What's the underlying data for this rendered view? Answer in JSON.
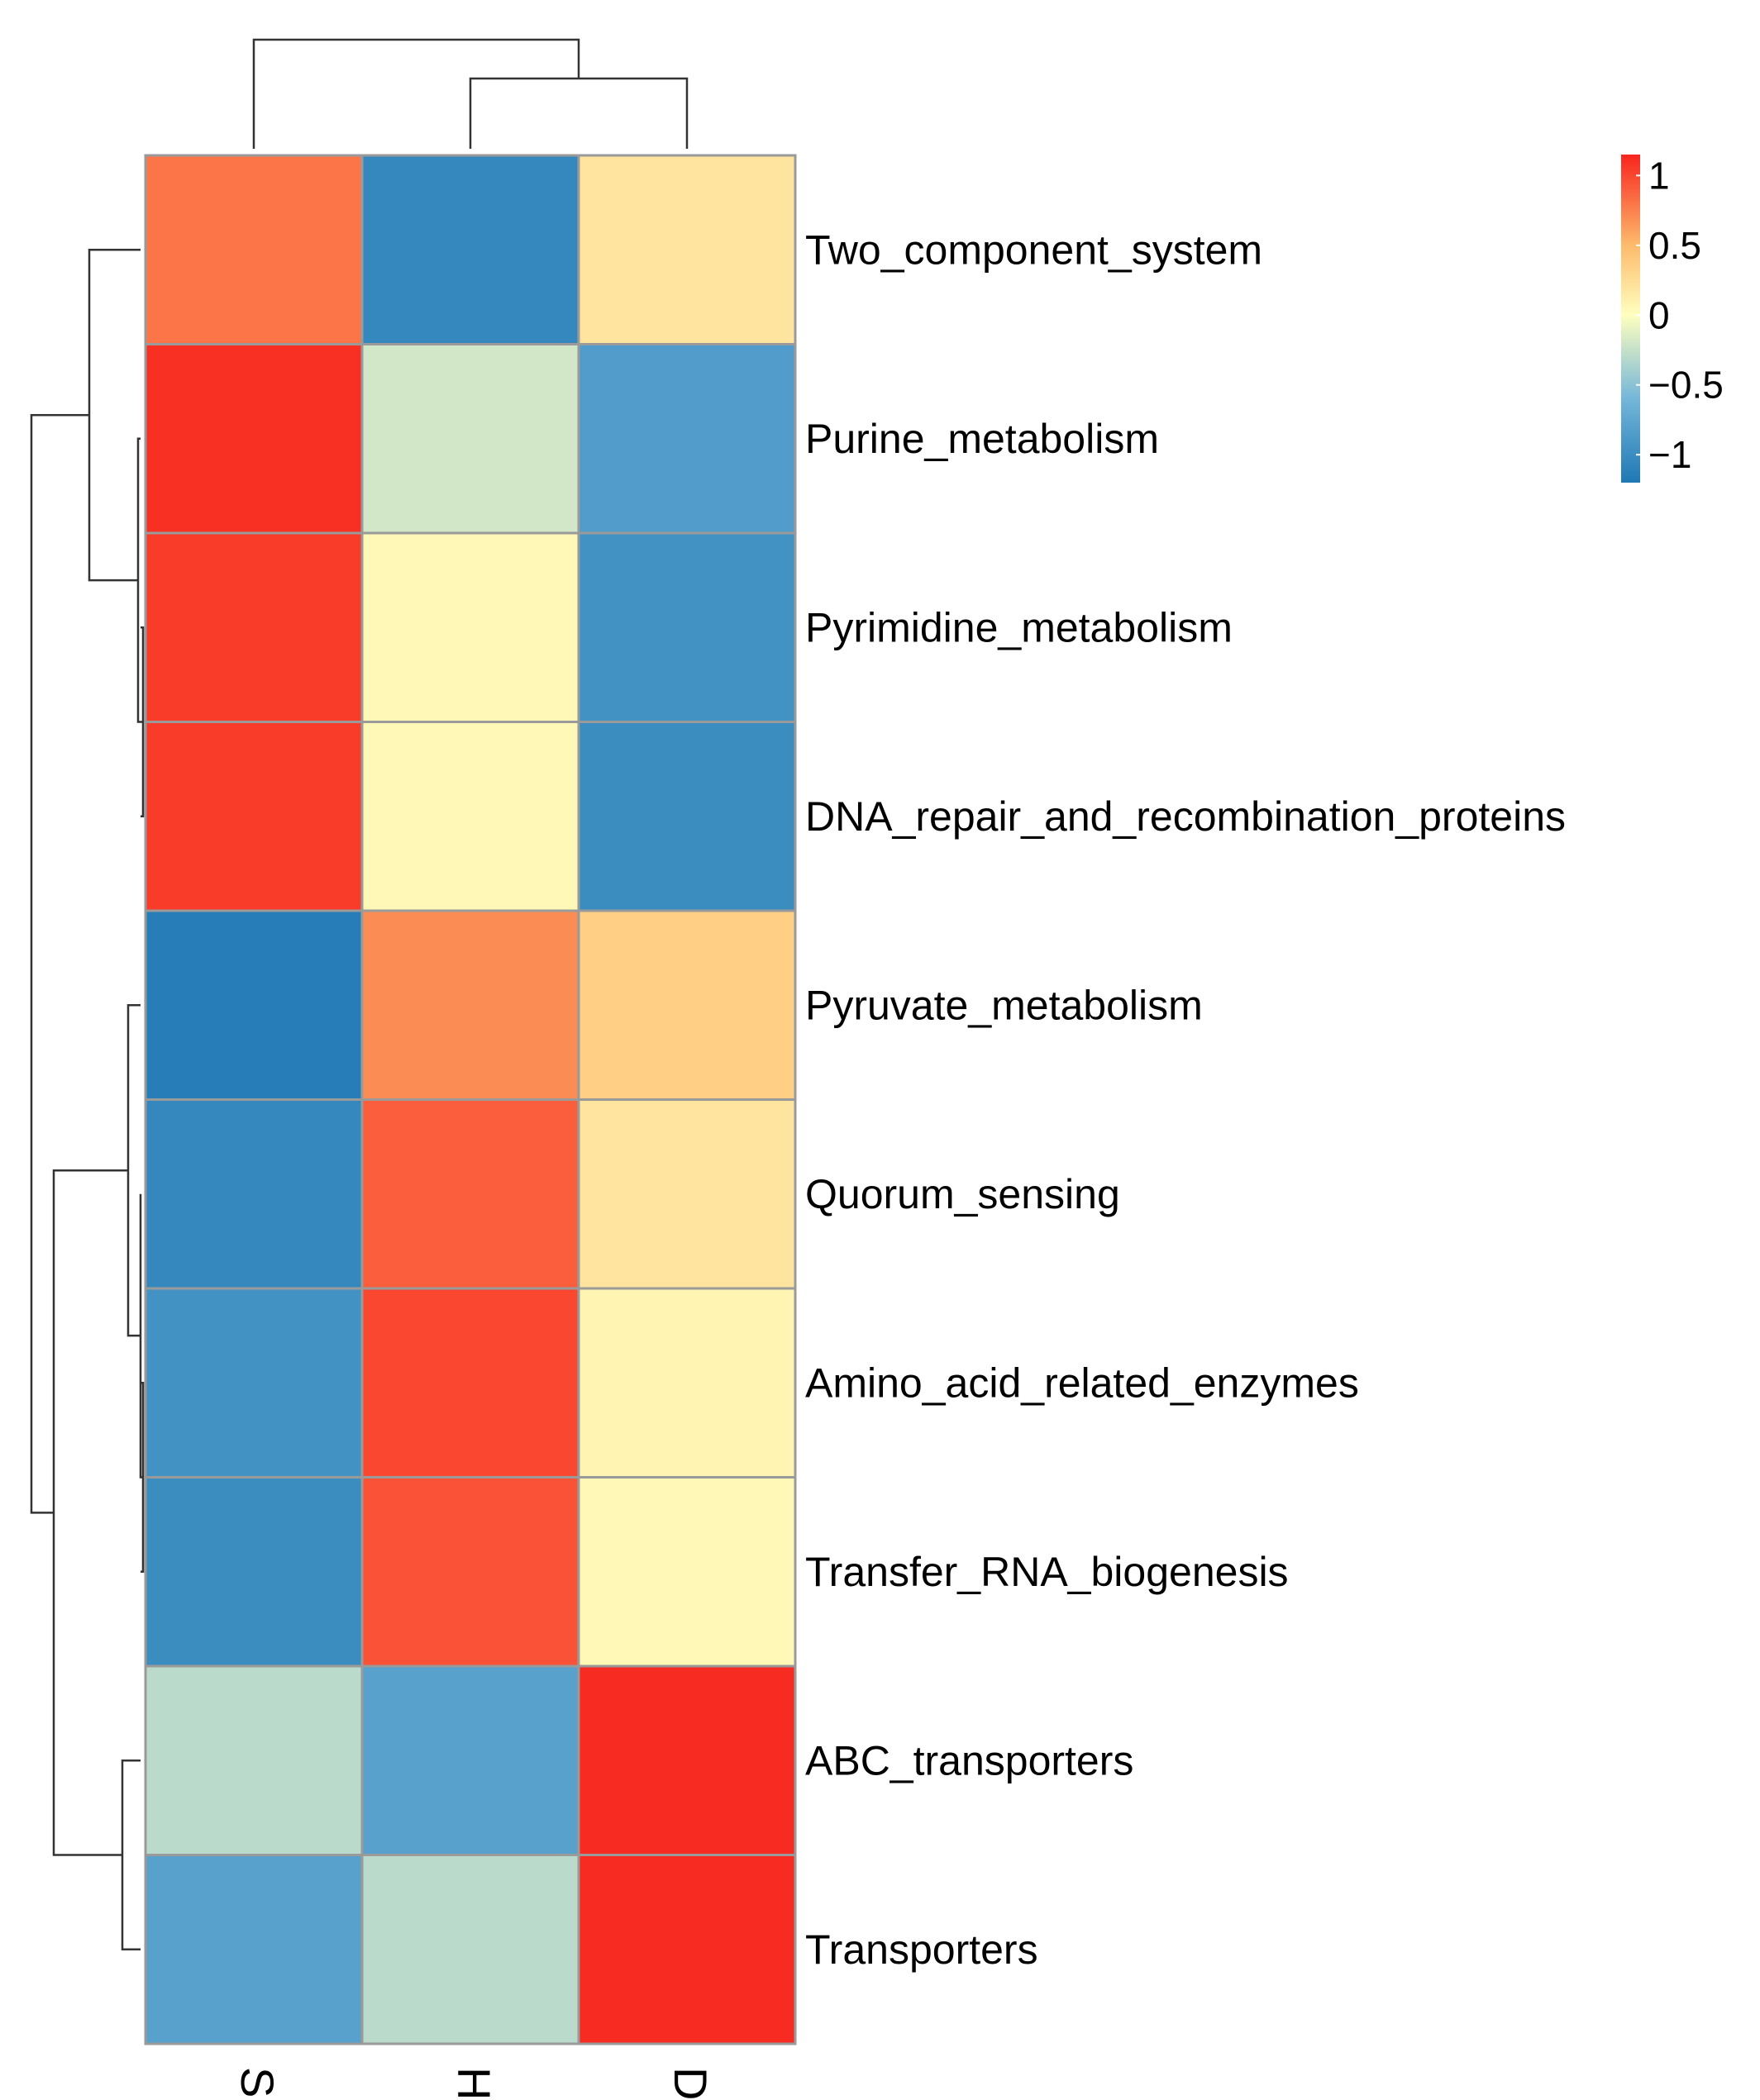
{
  "chart_data": {
    "type": "heatmap",
    "rows": [
      "Two_component_system",
      "Purine_metabolism",
      "Pyrimidine_metabolism",
      "DNA_repair_and_recombination_proteins",
      "Pyruvate_metabolism",
      "Quorum_sensing",
      "Amino_acid_related_enzymes",
      "Transfer_RNA_biogenesis",
      "ABC_transporters",
      "Transporters"
    ],
    "columns": [
      "S",
      "H",
      "D"
    ],
    "values": [
      [
        0.8,
        -1.05,
        0.2
      ],
      [
        1.1,
        -0.2,
        -0.85
      ],
      [
        1.05,
        0.05,
        -0.95
      ],
      [
        1.05,
        0.05,
        -1.0
      ],
      [
        -1.15,
        0.7,
        0.35
      ],
      [
        -1.05,
        0.9,
        0.2
      ],
      [
        -0.95,
        1.0,
        0.08
      ],
      [
        -1.0,
        0.95,
        0.05
      ],
      [
        -0.3,
        -0.8,
        1.12
      ],
      [
        -0.8,
        -0.3,
        1.12
      ]
    ],
    "color_scale": {
      "min": -1.2,
      "max": 1.15,
      "stops": [
        {
          "value": -1.2,
          "color": "#1f78b4"
        },
        {
          "value": -0.6,
          "color": "#74b6d9"
        },
        {
          "value": 0,
          "color": "#ffffbf"
        },
        {
          "value": 0.5,
          "color": "#fdbb6c"
        },
        {
          "value": 1.15,
          "color": "#f8241e"
        }
      ]
    },
    "legend": {
      "ticks": [
        {
          "value": 1,
          "label": "1"
        },
        {
          "value": 0.5,
          "label": "0.5"
        },
        {
          "value": 0,
          "label": "0"
        },
        {
          "value": -0.5,
          "label": "−0.5"
        },
        {
          "value": -1,
          "label": "−1"
        }
      ],
      "placement": "top-right"
    },
    "column_dendrogram": {
      "merges": [
        [
          1,
          2
        ],
        [
          0,
          "H+D"
        ]
      ]
    },
    "row_dendrogram": {
      "merges": [
        [
          2,
          3
        ],
        [
          1,
          "Pyrimidine+DNA"
        ],
        [
          0,
          "Purine group"
        ],
        [
          6,
          7
        ],
        [
          5,
          "Amino+Transfer"
        ],
        [
          4,
          "Quorum group"
        ],
        [
          8,
          9
        ],
        [
          "Pyruvate group",
          "ABC+Transporters"
        ],
        [
          "Two_component group",
          "lower group"
        ]
      ]
    },
    "title": "",
    "xlabel": "",
    "ylabel": ""
  }
}
